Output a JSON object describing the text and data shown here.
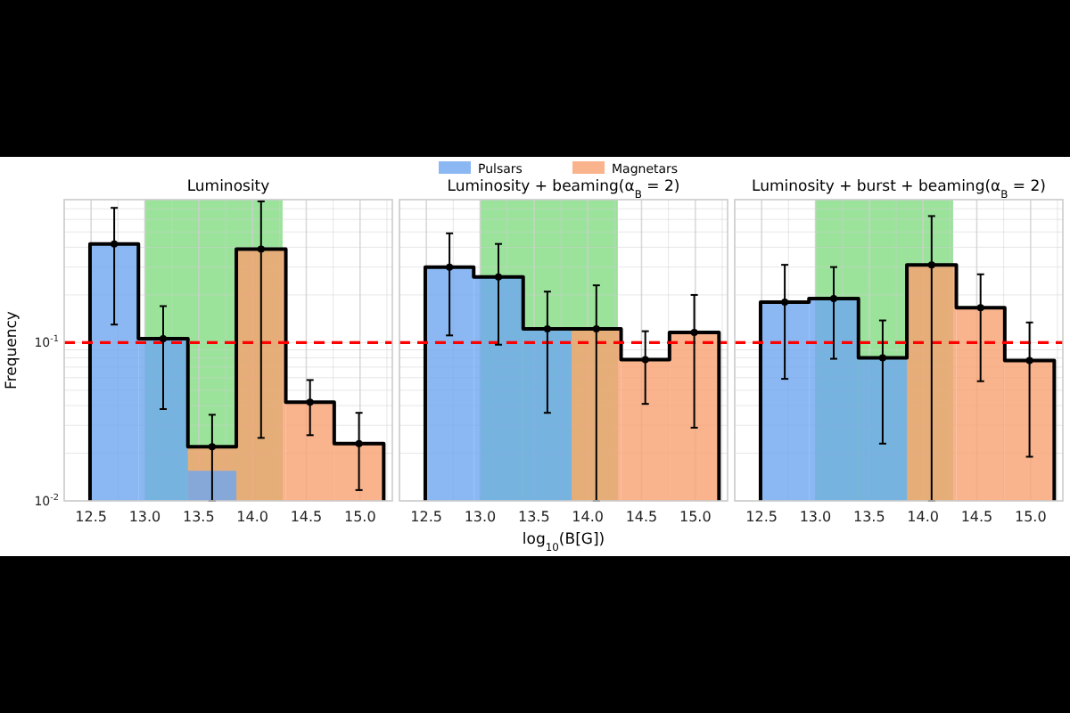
{
  "chart_data": [
    {
      "type": "histogram",
      "title": "Luminosity",
      "ylabel": "Frequency",
      "bins": [
        12.49,
        12.94,
        13.4,
        13.85,
        14.31,
        14.76,
        15.22
      ],
      "log": true,
      "grid": true,
      "xlim": [
        12.25,
        15.3
      ],
      "xticks": [
        {
          "value": 12.25,
          "label": null
        },
        12.5,
        {
          "value": 12.75,
          "label": null
        },
        {
          "value": 13.0,
          "label": "13.0"
        },
        {
          "value": 13.25,
          "label": null
        },
        13.5,
        {
          "value": 13.75,
          "label": null
        },
        {
          "value": 14.0,
          "label": "14.0"
        },
        {
          "value": 14.25,
          "label": null
        },
        14.5,
        {
          "value": 14.75,
          "label": null
        },
        {
          "value": 15.0,
          "label": "15.0"
        },
        {
          "value": 15.25,
          "label": null
        }
      ],
      "ylim": [
        0.01,
        0.8
      ],
      "yticks": [
        {
          "value": 0.01,
          "label": "10$^{-2}$"
        },
        {
          "value": 0.02,
          "label": null
        },
        {
          "value": 0.03,
          "label": null
        },
        {
          "value": 0.04,
          "label": null
        },
        {
          "value": 0.05,
          "label": null
        },
        {
          "value": 0.06,
          "label": null
        },
        {
          "value": 0.07,
          "label": null
        },
        {
          "value": 0.08,
          "label": null
        },
        {
          "value": 0.09,
          "label": null
        },
        {
          "value": 0.1,
          "label": "10$^{-1}$"
        },
        {
          "value": 0.2,
          "label": null
        },
        {
          "value": 0.3,
          "label": null
        },
        {
          "value": 0.4,
          "label": null
        },
        {
          "value": 0.5,
          "label": null
        },
        {
          "value": 0.6,
          "label": null
        },
        {
          "value": 0.7,
          "label": null
        },
        {
          "value": 0.8,
          "label": null
        }
      ],
      "series": [
        {
          "type": "histogram",
          "color": "#6ea6f0",
          "values": [
            0.42,
            0.106,
            0.0155,
            null,
            null,
            null
          ]
        },
        {
          "type": "histogram",
          "color": "#f8a070",
          "values": [
            null,
            null,
            0.022,
            0.39,
            0.042,
            0.023
          ]
        },
        {
          "type": "step",
          "color": "#000000",
          "x": [
            12.49,
            12.49,
            12.94,
            13.4,
            13.85,
            14.31,
            14.76,
            15.22,
            15.22
          ],
          "values": [
            0.01,
            0.42,
            0.106,
            0.022,
            0.39,
            0.042,
            0.023,
            0.023,
            0.01
          ]
        },
        {
          "type": "scatter",
          "color": "#000000",
          "marker": "circle",
          "x": [
            12.715,
            13.17,
            13.625,
            14.08,
            14.535,
            14.99
          ],
          "values": [
            0.42,
            0.106,
            0.022,
            0.39,
            0.042,
            0.023
          ],
          "errors": [
            [
              0.13,
              0.71
            ],
            [
              0.038,
              0.17
            ],
            [
              0.01,
              0.035
            ],
            [
              0.025,
              0.78
            ],
            [
              0.026,
              0.058
            ],
            [
              0.0117,
              0.036
            ]
          ]
        }
      ],
      "ref_lines": [
        {
          "axis": "y",
          "value": 0.1,
          "color": "#ff0000",
          "line_style": "dashed"
        }
      ],
      "bands": [
        {
          "axis": "x",
          "from": 13.0,
          "to": 14.28,
          "color": "#90e090"
        }
      ]
    },
    {
      "type": "histogram",
      "title": "Luminosity + beaming(α$_{B}$ = 2)",
      "xlabel": "log$_{10}$(B[G])",
      "bins": [
        12.49,
        12.94,
        13.4,
        13.85,
        14.31,
        14.76,
        15.22
      ],
      "log": true,
      "grid": true,
      "tick_labels": "x",
      "legend": "top",
      "xlim": [
        12.25,
        15.3
      ],
      "xticks": [
        {
          "value": 12.25,
          "label": null
        },
        12.5,
        {
          "value": 12.75,
          "label": null
        },
        {
          "value": 13.0,
          "label": "13.0"
        },
        {
          "value": 13.25,
          "label": null
        },
        13.5,
        {
          "value": 13.75,
          "label": null
        },
        {
          "value": 14.0,
          "label": "14.0"
        },
        {
          "value": 14.25,
          "label": null
        },
        14.5,
        {
          "value": 14.75,
          "label": null
        },
        {
          "value": 15.0,
          "label": "15.0"
        },
        {
          "value": 15.25,
          "label": null
        }
      ],
      "ylim": [
        0.01,
        0.8
      ],
      "yticks": [
        {
          "value": 0.01,
          "label": null
        },
        {
          "value": 0.02,
          "label": null
        },
        {
          "value": 0.03,
          "label": null
        },
        {
          "value": 0.04,
          "label": null
        },
        {
          "value": 0.05,
          "label": null
        },
        {
          "value": 0.06,
          "label": null
        },
        {
          "value": 0.07,
          "label": null
        },
        {
          "value": 0.08,
          "label": null
        },
        {
          "value": 0.09,
          "label": null
        },
        {
          "value": 0.1,
          "label": null
        },
        {
          "value": 0.2,
          "label": null
        },
        {
          "value": 0.3,
          "label": null
        },
        {
          "value": 0.4,
          "label": null
        },
        {
          "value": 0.5,
          "label": null
        },
        {
          "value": 0.6,
          "label": null
        },
        {
          "value": 0.7,
          "label": null
        },
        {
          "value": 0.8,
          "label": null
        }
      ],
      "series": [
        {
          "type": "histogram",
          "name": "Pulsars",
          "color": "#6ea6f0",
          "values": [
            0.3,
            0.26,
            0.122,
            null,
            null,
            null
          ]
        },
        {
          "type": "histogram",
          "name": "Magnetars",
          "color": "#f8a070",
          "values": [
            null,
            null,
            null,
            0.122,
            0.078,
            0.116
          ]
        },
        {
          "type": "step",
          "color": "#000000",
          "x": [
            12.49,
            12.49,
            12.94,
            13.4,
            13.85,
            14.31,
            14.76,
            15.22,
            15.22
          ],
          "values": [
            0.01,
            0.3,
            0.26,
            0.122,
            0.122,
            0.078,
            0.116,
            0.116,
            0.01
          ]
        },
        {
          "type": "scatter",
          "color": "#000000",
          "marker": "circle",
          "x": [
            12.715,
            13.17,
            13.625,
            14.08,
            14.535,
            14.99
          ],
          "values": [
            0.3,
            0.26,
            0.122,
            0.122,
            0.078,
            0.116
          ],
          "errors": [
            [
              0.111,
              0.49
            ],
            [
              0.097,
              0.42
            ],
            [
              0.036,
              0.21
            ],
            [
              0.01,
              0.23
            ],
            [
              0.041,
              0.118
            ],
            [
              0.029,
              0.2
            ]
          ]
        }
      ],
      "ref_lines": [
        {
          "axis": "y",
          "value": 0.1,
          "color": "#ff0000",
          "line_style": "dashed"
        }
      ],
      "bands": [
        {
          "axis": "x",
          "from": 13.0,
          "to": 14.28,
          "color": "#90e090"
        }
      ]
    },
    {
      "type": "histogram",
      "title": "Luminosity + burst + beaming(α$_{B}$ = 2)",
      "bins": [
        12.49,
        12.94,
        13.4,
        13.85,
        14.31,
        14.76,
        15.22
      ],
      "log": true,
      "grid": true,
      "tick_labels": "x",
      "xlim": [
        12.25,
        15.3
      ],
      "xticks": [
        {
          "value": 12.25,
          "label": null
        },
        12.5,
        {
          "value": 12.75,
          "label": null
        },
        {
          "value": 13.0,
          "label": "13.0"
        },
        {
          "value": 13.25,
          "label": null
        },
        13.5,
        {
          "value": 13.75,
          "label": null
        },
        {
          "value": 14.0,
          "label": "14.0"
        },
        {
          "value": 14.25,
          "label": null
        },
        14.5,
        {
          "value": 14.75,
          "label": null
        },
        {
          "value": 15.0,
          "label": "15.0"
        },
        {
          "value": 15.25,
          "label": null
        }
      ],
      "ylim": [
        0.01,
        0.8
      ],
      "yticks": [
        {
          "value": 0.01,
          "label": null
        },
        {
          "value": 0.02,
          "label": null
        },
        {
          "value": 0.03,
          "label": null
        },
        {
          "value": 0.04,
          "label": null
        },
        {
          "value": 0.05,
          "label": null
        },
        {
          "value": 0.06,
          "label": null
        },
        {
          "value": 0.07,
          "label": null
        },
        {
          "value": 0.08,
          "label": null
        },
        {
          "value": 0.09,
          "label": null
        },
        {
          "value": 0.1,
          "label": null
        },
        {
          "value": 0.2,
          "label": null
        },
        {
          "value": 0.3,
          "label": null
        },
        {
          "value": 0.4,
          "label": null
        },
        {
          "value": 0.5,
          "label": null
        },
        {
          "value": 0.6,
          "label": null
        },
        {
          "value": 0.7,
          "label": null
        },
        {
          "value": 0.8,
          "label": null
        }
      ],
      "series": [
        {
          "type": "histogram",
          "color": "#6ea6f0",
          "values": [
            0.18,
            0.19,
            0.08,
            null,
            null,
            null
          ]
        },
        {
          "type": "histogram",
          "color": "#f8a070",
          "values": [
            null,
            null,
            null,
            0.31,
            0.166,
            0.077
          ]
        },
        {
          "type": "step",
          "color": "#000000",
          "x": [
            12.49,
            12.49,
            12.94,
            13.4,
            13.85,
            14.31,
            14.76,
            15.22,
            15.22
          ],
          "values": [
            0.01,
            0.18,
            0.19,
            0.08,
            0.31,
            0.166,
            0.077,
            0.077,
            0.01
          ]
        },
        {
          "type": "scatter",
          "color": "#000000",
          "marker": "circle",
          "x": [
            12.715,
            13.17,
            13.625,
            14.08,
            14.535,
            14.99
          ],
          "values": [
            0.18,
            0.19,
            0.08,
            0.31,
            0.166,
            0.077
          ],
          "errors": [
            [
              0.059,
              0.31
            ],
            [
              0.079,
              0.3
            ],
            [
              0.023,
              0.138
            ],
            [
              0.01,
              0.63
            ],
            [
              0.057,
              0.27
            ],
            [
              0.019,
              0.134
            ]
          ]
        }
      ],
      "ref_lines": [
        {
          "axis": "y",
          "value": 0.1,
          "color": "#ff0000",
          "line_style": "dashed"
        }
      ],
      "bands": [
        {
          "axis": "x",
          "from": 13.0,
          "to": 14.28,
          "color": "#90e090"
        }
      ]
    }
  ]
}
